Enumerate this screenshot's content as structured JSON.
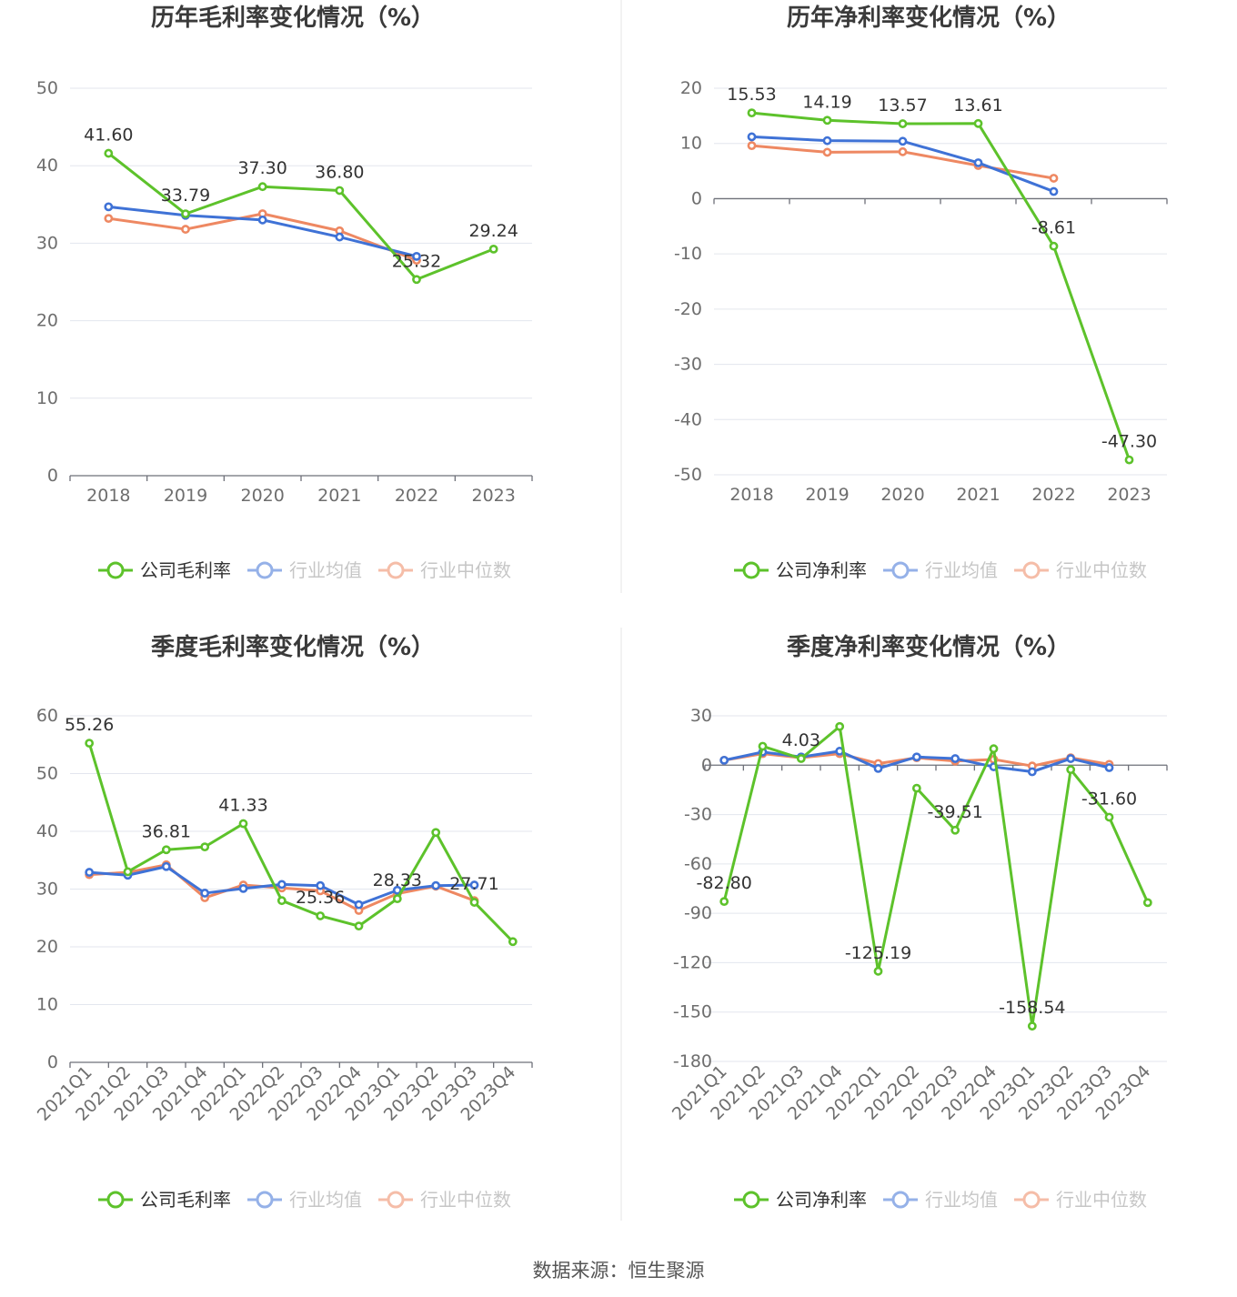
{
  "source_text": "数据来源：恒生聚源",
  "colors": {
    "company": "#5dc22b",
    "avg": "#3f72d6",
    "median": "#ee8862"
  },
  "chart_data": [
    {
      "type": "line",
      "title": "历年毛利率变化情况（%）",
      "categories": [
        "2018",
        "2019",
        "2020",
        "2021",
        "2022",
        "2023"
      ],
      "ylim": [
        0,
        50
      ],
      "yticks": [
        0,
        10,
        20,
        30,
        40,
        50
      ],
      "yticklabels": [
        "0",
        "10",
        "20",
        "30",
        "40",
        "50"
      ],
      "legend": [
        "公司毛利率",
        "行业均值",
        "行业中位数"
      ],
      "series": [
        {
          "name": "公司毛利率",
          "key": "company",
          "values": [
            41.6,
            33.79,
            37.3,
            36.8,
            25.32,
            29.24
          ],
          "labels": [
            "41.60",
            "33.79",
            "37.30",
            "36.80",
            "25.32",
            "29.24"
          ]
        },
        {
          "name": "行业均值",
          "key": "avg",
          "values": [
            34.7,
            33.6,
            33.0,
            30.8,
            28.3,
            null
          ]
        },
        {
          "name": "行业中位数",
          "key": "median",
          "values": [
            33.2,
            31.8,
            33.8,
            31.6,
            27.8,
            null
          ]
        }
      ]
    },
    {
      "type": "line",
      "title": "历年净利率变化情况（%）",
      "categories": [
        "2018",
        "2019",
        "2020",
        "2021",
        "2022",
        "2023"
      ],
      "ylim": [
        -50,
        20
      ],
      "yticks": [
        -50,
        -40,
        -30,
        -20,
        -10,
        0,
        10,
        20
      ],
      "yticklabels": [
        "-50",
        "-40",
        "-30",
        "-20",
        "-10",
        "0",
        "10",
        "20"
      ],
      "legend": [
        "公司净利率",
        "行业均值",
        "行业中位数"
      ],
      "series": [
        {
          "name": "公司净利率",
          "key": "company",
          "values": [
            15.53,
            14.19,
            13.57,
            13.61,
            -8.61,
            -47.3
          ],
          "labels": [
            "15.53",
            "14.19",
            "13.57",
            "13.61",
            "-8.61",
            "-47.30"
          ]
        },
        {
          "name": "行业均值",
          "key": "avg",
          "values": [
            11.2,
            10.5,
            10.4,
            6.5,
            1.3,
            null
          ]
        },
        {
          "name": "行业中位数",
          "key": "median",
          "values": [
            9.6,
            8.4,
            8.5,
            6.0,
            3.7,
            null
          ]
        }
      ]
    },
    {
      "type": "line",
      "title": "季度毛利率变化情况（%）",
      "categories": [
        "2021Q1",
        "2021Q2",
        "2021Q3",
        "2021Q4",
        "2022Q1",
        "2022Q2",
        "2022Q3",
        "2022Q4",
        "2023Q1",
        "2023Q2",
        "2023Q3",
        "2023Q4"
      ],
      "ylim": [
        0,
        60
      ],
      "yticks": [
        0,
        10,
        20,
        30,
        40,
        50,
        60
      ],
      "yticklabels": [
        "0",
        "10",
        "20",
        "30",
        "40",
        "50",
        "60"
      ],
      "legend": [
        "公司毛利率",
        "行业均值",
        "行业中位数"
      ],
      "series": [
        {
          "name": "公司毛利率",
          "key": "company",
          "values": [
            55.26,
            33.0,
            36.81,
            37.3,
            41.33,
            28.0,
            25.36,
            23.6,
            28.33,
            39.8,
            27.71,
            20.9
          ],
          "labels": [
            "55.26",
            "",
            "36.81",
            "",
            "41.33",
            "",
            "25.36",
            "",
            "28.33",
            "",
            "27.71",
            ""
          ]
        },
        {
          "name": "行业均值",
          "key": "avg",
          "values": [
            32.9,
            32.4,
            33.9,
            29.3,
            30.1,
            30.8,
            30.6,
            27.3,
            29.8,
            30.6,
            30.7,
            null
          ]
        },
        {
          "name": "行业中位数",
          "key": "median",
          "values": [
            32.5,
            32.9,
            34.2,
            28.5,
            30.7,
            30.2,
            29.7,
            26.3,
            29.2,
            30.5,
            28.0,
            null
          ]
        }
      ]
    },
    {
      "type": "line",
      "title": "季度净利率变化情况（%）",
      "categories": [
        "2021Q1",
        "2021Q2",
        "2021Q3",
        "2021Q4",
        "2022Q1",
        "2022Q2",
        "2022Q3",
        "2022Q4",
        "2023Q1",
        "2023Q2",
        "2023Q3",
        "2023Q4"
      ],
      "ylim": [
        -180,
        30
      ],
      "yticks": [
        -180,
        -150,
        -120,
        -90,
        -60,
        -30,
        0,
        30
      ],
      "yticklabels": [
        "-180",
        "-150",
        "-120",
        "-90",
        "-60",
        "-30",
        "0",
        "30"
      ],
      "legend": [
        "公司净利率",
        "行业均值",
        "行业中位数"
      ],
      "series": [
        {
          "name": "公司净利率",
          "key": "company",
          "values": [
            -82.8,
            11.5,
            4.03,
            23.5,
            -125.19,
            -14.0,
            -39.51,
            10.0,
            -158.54,
            -2.7,
            -31.6,
            -83.5
          ],
          "labels": [
            "-82.80",
            "",
            "4.03",
            "",
            "-125.19",
            "",
            "-39.51",
            "",
            "-158.54",
            "",
            "-31.60",
            ""
          ]
        },
        {
          "name": "行业均值",
          "key": "avg",
          "values": [
            3.0,
            8.0,
            5.0,
            8.5,
            -2.0,
            5.0,
            4.0,
            -1.0,
            -4.0,
            4.0,
            -1.5,
            null
          ]
        },
        {
          "name": "行业中位数",
          "key": "median",
          "values": [
            3.0,
            7.0,
            4.5,
            7.0,
            1.0,
            4.5,
            2.5,
            3.5,
            -0.5,
            4.5,
            0.5,
            null
          ]
        }
      ]
    }
  ]
}
